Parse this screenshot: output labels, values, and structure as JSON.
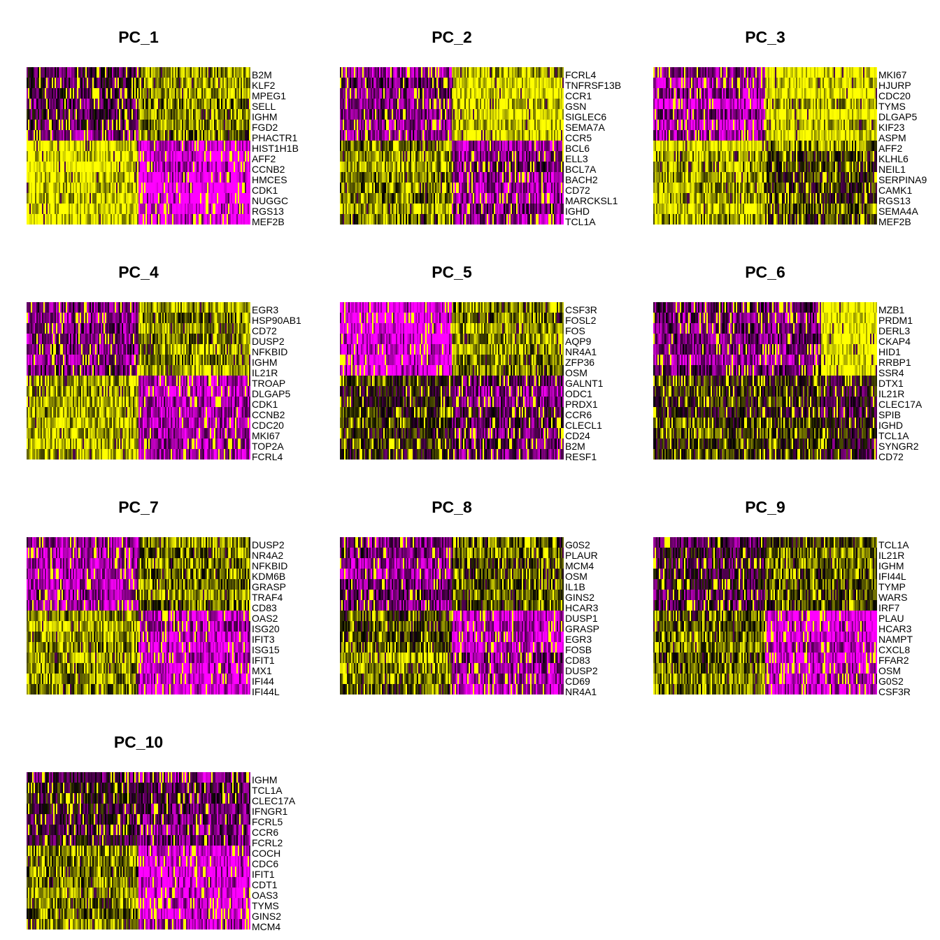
{
  "chart_data": {
    "type": "heatmap",
    "colors": {
      "low": "#ff00ff",
      "mid": "#000000",
      "high": "#ffff00"
    },
    "panels": [
      {
        "title": "PC_1",
        "genes": [
          "B2M",
          "KLF2",
          "MPEG1",
          "SELL",
          "IGHM",
          "FGD2",
          "PHACTR1",
          "HIST1H1B",
          "AFF2",
          "CCNB2",
          "HMCES",
          "CDK1",
          "NUGGC",
          "RGS13",
          "MEF2B"
        ],
        "split_col": 0.5,
        "split_row": 7,
        "blocks": {
          "tl": -0.35,
          "tr": 0.45,
          "bl": 0.85,
          "br": -0.9
        }
      },
      {
        "title": "PC_2",
        "genes": [
          "FCRL4",
          "TNFRSF13B",
          "CCR1",
          "GSN",
          "SIGLEC6",
          "SEMA7A",
          "CCR5",
          "BCL6",
          "ELL3",
          "BCL7A",
          "BACH2",
          "CD72",
          "MARCKSL1",
          "IGHD",
          "TCL1A"
        ],
        "split_col": 0.5,
        "split_row": 7,
        "blocks": {
          "tl": -0.5,
          "tr": 0.8,
          "bl": 0.5,
          "br": -0.55
        }
      },
      {
        "title": "PC_3",
        "genes": [
          "MKI67",
          "HJURP",
          "CDC20",
          "TYMS",
          "DLGAP5",
          "KIF23",
          "ASPM",
          "AFF2",
          "KLHL6",
          "NEIL1",
          "SERPINA9",
          "CAMK1",
          "RGS13",
          "SEMA4A",
          "MEF2B"
        ],
        "split_col": 0.5,
        "split_row": 7,
        "blocks": {
          "tl": -0.7,
          "tr": 0.75,
          "bl": 0.7,
          "br": 0.3
        }
      },
      {
        "title": "PC_4",
        "genes": [
          "EGR3",
          "HSP90AB1",
          "CD72",
          "DUSP2",
          "NFKBID",
          "IGHM",
          "IL21R",
          "TROAP",
          "DLGAP5",
          "CDK1",
          "CCNB2",
          "CDC20",
          "MKI67",
          "TOP2A",
          "FCRL4"
        ],
        "split_col": 0.5,
        "split_row": 7,
        "blocks": {
          "tl": -0.45,
          "tr": 0.55,
          "bl": 0.6,
          "br": -0.7
        }
      },
      {
        "title": "PC_5",
        "genes": [
          "CSF3R",
          "FOSL2",
          "FOS",
          "AQP9",
          "NR4A1",
          "ZFP36",
          "OSM",
          "GALNT1",
          "ODC1",
          "PRDX1",
          "CCR6",
          "CLECL1",
          "CD24",
          "B2M",
          "RESF1"
        ],
        "split_col": 0.5,
        "split_row": 7,
        "blocks": {
          "tl": -0.95,
          "tr": 0.45,
          "bl": 0.1,
          "br": -0.4
        }
      },
      {
        "title": "PC_6",
        "genes": [
          "MZB1",
          "PRDM1",
          "DERL3",
          "CKAP4",
          "HID1",
          "RRBP1",
          "SSR4",
          "DTX1",
          "IL21R",
          "CLEC17A",
          "SPIB",
          "IGHD",
          "TCL1A",
          "SYNGR2",
          "CD72"
        ],
        "split_col": 0.75,
        "split_row": 7,
        "blocks": {
          "tl": -0.5,
          "tr": 0.9,
          "bl": 0.15,
          "br": -0.1
        }
      },
      {
        "title": "PC_7",
        "genes": [
          "DUSP2",
          "NR4A2",
          "NFKBID",
          "KDM6B",
          "GRASP",
          "TRAF4",
          "CD83",
          "OAS2",
          "ISG20",
          "IFIT3",
          "ISG15",
          "IFIT1",
          "MX1",
          "IFI44",
          "IFI44L"
        ],
        "split_col": 0.5,
        "split_row": 7,
        "blocks": {
          "tl": -0.55,
          "tr": 0.55,
          "bl": 0.55,
          "br": -0.8
        }
      },
      {
        "title": "PC_8",
        "genes": [
          "G0S2",
          "PLAUR",
          "MCM4",
          "OSM",
          "IL1B",
          "GINS2",
          "HCAR3",
          "DUSP1",
          "GRASP",
          "EGR3",
          "FOSB",
          "CD83",
          "DUSP2",
          "CD69",
          "NR4A1"
        ],
        "split_col": 0.5,
        "split_row": 7,
        "blocks": {
          "tl": -0.5,
          "tr": 0.3,
          "bl": 0.45,
          "br": -0.65
        }
      },
      {
        "title": "PC_9",
        "genes": [
          "TCL1A",
          "IL21R",
          "IGHM",
          "IFI44L",
          "TYMP",
          "WARS",
          "IRF7",
          "PLAU",
          "HCAR3",
          "NAMPT",
          "CXCL8",
          "FFAR2",
          "OSM",
          "G0S2",
          "CSF3R"
        ],
        "split_col": 0.5,
        "split_row": 7,
        "blocks": {
          "tl": -0.2,
          "tr": 0.3,
          "bl": 0.35,
          "br": -0.85
        }
      },
      {
        "title": "PC_10",
        "genes": [
          "IGHM",
          "TCL1A",
          "CLEC17A",
          "IFNGR1",
          "FCRL5",
          "CCR6",
          "FCRL2",
          "COCH",
          "CDC6",
          "IFIT1",
          "CDT1",
          "OAS3",
          "TYMS",
          "GINS2",
          "MCM4"
        ],
        "split_col": 0.5,
        "split_row": 7,
        "blocks": {
          "tl": -0.15,
          "tr": -0.4,
          "bl": 0.45,
          "br": -0.85
        }
      }
    ]
  }
}
